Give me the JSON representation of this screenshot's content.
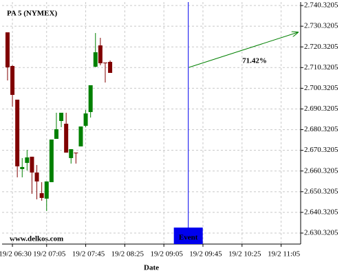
{
  "chart_data": {
    "type": "candlestick",
    "title": "PA 5 (NYMEX)",
    "watermark": "www.delkos.com",
    "x_label": "Date",
    "up_color": "#008000",
    "down_color": "#800000",
    "grid": true,
    "event": {
      "label": "Event",
      "x": 570,
      "color": "#0000ee"
    },
    "projection": {
      "label": "71.42%",
      "color": "#008000"
    },
    "xlim": [
      379.4,
      685
    ],
    "xticks": [
      {
        "value": 390,
        "label": "19/2 06:30"
      },
      {
        "value": 425,
        "label": "19/2 07:05"
      },
      {
        "value": 465,
        "label": "19/2 07:45"
      },
      {
        "value": 505,
        "label": "19/2 08:25"
      },
      {
        "value": 545,
        "label": "19/2 09:05"
      },
      {
        "value": 585,
        "label": "19/2 09:45"
      },
      {
        "value": 625,
        "label": "19/2 10:25"
      },
      {
        "value": 665,
        "label": "19/2 11:05"
      }
    ],
    "ylim": [
      2.625,
      2.742
    ],
    "yticks": [
      {
        "value": 2.6303205,
        "label": "2.630.3205"
      },
      {
        "value": 2.6403205,
        "label": "2.640.3205"
      },
      {
        "value": 2.6503205,
        "label": "2.650.3205"
      },
      {
        "value": 2.6603205,
        "label": "2.660.3205"
      },
      {
        "value": 2.6703205,
        "label": "2.670.3205"
      },
      {
        "value": 2.6803205,
        "label": "2.680.3205"
      },
      {
        "value": 2.6903205,
        "label": "2.690.3205"
      },
      {
        "value": 2.7003205,
        "label": "2.700.3205"
      },
      {
        "value": 2.7103205,
        "label": "2.710.3205"
      },
      {
        "value": 2.7203205,
        "label": "2.720.3205"
      },
      {
        "value": 2.7303205,
        "label": "2.730.3205"
      },
      {
        "value": 2.7403205,
        "label": "2.740.3205"
      }
    ],
    "x": [
      385,
      390,
      395,
      400,
      405,
      410,
      415,
      420,
      425,
      430,
      435,
      440,
      445,
      450,
      455,
      460,
      465,
      470,
      475,
      480,
      485,
      490
    ],
    "open": [
      2.72736,
      2.71108,
      2.69481,
      2.66125,
      2.66424,
      2.66723,
      2.65959,
      2.64962,
      2.64697,
      2.65494,
      2.67587,
      2.68451,
      2.68318,
      2.66657,
      2.66922,
      2.67221,
      2.68218,
      2.68883,
      2.71075,
      2.72105,
      2.71275,
      2.71308
    ],
    "high": [
      2.72736,
      2.71142,
      2.69481,
      2.66657,
      2.67055,
      2.66723,
      2.66324,
      2.65494,
      2.65527,
      2.67554,
      2.68849,
      2.68849,
      2.68849,
      2.67088,
      2.66922,
      2.68185,
      2.68982,
      2.70178,
      2.72703,
      2.72471,
      2.71275,
      2.71374
    ],
    "low": [
      2.70411,
      2.69148,
      2.65726,
      2.65726,
      2.66059,
      2.64929,
      2.64663,
      2.64597,
      2.64098,
      2.65494,
      2.67587,
      2.68152,
      2.66922,
      2.66391,
      2.66391,
      2.67221,
      2.68152,
      2.68617,
      2.71042,
      2.71142,
      2.70311,
      2.70776
    ],
    "close": [
      2.71042,
      2.69713,
      2.66258,
      2.66225,
      2.6669,
      2.65959,
      2.65527,
      2.6473,
      2.65527,
      2.67554,
      2.68052,
      2.68849,
      2.66922,
      2.67088,
      2.66889,
      2.68185,
      2.68816,
      2.70178,
      2.71773,
      2.71241,
      2.71241,
      2.70776
    ]
  }
}
